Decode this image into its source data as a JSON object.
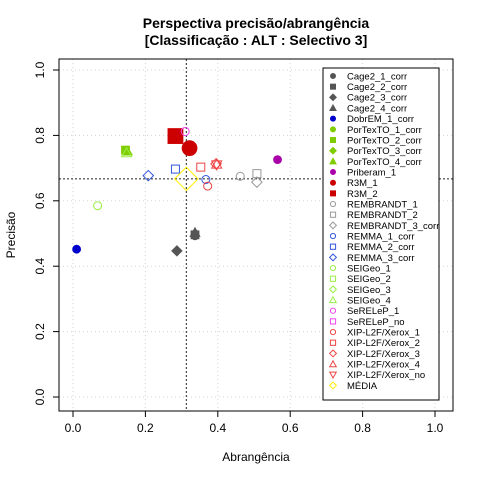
{
  "chart_data": {
    "type": "scatter",
    "title": "Perspectiva precisão/abrangência",
    "subtitle": "[Classificação : ALT : Selectivo 3]",
    "xlabel": "Abrangência",
    "ylabel": "Precisão",
    "xlim": [
      0,
      1
    ],
    "ylim": [
      0,
      1
    ],
    "xticks": [
      "0.0",
      "0.2",
      "0.4",
      "0.6",
      "0.8",
      "1.0"
    ],
    "yticks": [
      "0.0",
      "0.2",
      "0.4",
      "0.6",
      "0.8",
      "1.0"
    ],
    "grid": true,
    "legend_position": "right",
    "reference_lines": {
      "x": 0.313,
      "y": 0.667
    },
    "series": [
      {
        "name": "Cage2_1_corr",
        "marker": "circle-filled",
        "color": "#555555",
        "size": 1,
        "points": [
          [
            0.337,
            0.493
          ]
        ]
      },
      {
        "name": "Cage2_2_corr",
        "marker": "square-filled",
        "color": "#555555",
        "size": 1,
        "points": [
          [
            0.337,
            0.496
          ]
        ]
      },
      {
        "name": "Cage2_3_corr",
        "marker": "diamond-filled",
        "color": "#555555",
        "size": 1,
        "points": [
          [
            0.287,
            0.447
          ]
        ]
      },
      {
        "name": "Cage2_4_corr",
        "marker": "triangle-filled",
        "color": "#555555",
        "size": 1,
        "points": [
          [
            0.337,
            0.503
          ]
        ]
      },
      {
        "name": "DobrEM_1_corr",
        "marker": "circle-filled",
        "color": "#0000cc",
        "size": 1,
        "points": [
          [
            0.01,
            0.452
          ]
        ]
      },
      {
        "name": "PorTexTO_1_corr",
        "marker": "circle-filled",
        "color": "#7fcc00",
        "size": 1,
        "points": []
      },
      {
        "name": "PorTexTO_2_corr",
        "marker": "square-filled",
        "color": "#7fcc00",
        "size": 1,
        "points": [
          [
            0.145,
            0.755
          ]
        ]
      },
      {
        "name": "PorTexTO_3_corr",
        "marker": "diamond-filled",
        "color": "#7fcc00",
        "size": 1,
        "points": []
      },
      {
        "name": "PorTexTO_4_corr",
        "marker": "triangle-filled",
        "color": "#7fcc00",
        "size": 1,
        "points": [
          [
            0.15,
            0.752
          ]
        ]
      },
      {
        "name": "Priberam_1",
        "marker": "circle-filled",
        "color": "#aa00aa",
        "size": 1,
        "points": [
          [
            0.565,
            0.726
          ]
        ]
      },
      {
        "name": "R3M_1",
        "marker": "circle-filled",
        "color": "#cc0000",
        "size": 1,
        "points": [
          [
            0.322,
            0.761
          ]
        ]
      },
      {
        "name": "R3M_2",
        "marker": "square-filled",
        "color": "#cc0000",
        "size": 1,
        "points": [
          [
            0.283,
            0.798
          ]
        ]
      },
      {
        "name": "REMBRANDT_1",
        "marker": "circle-open",
        "color": "#999999",
        "size": 1,
        "points": [
          [
            0.462,
            0.675
          ]
        ]
      },
      {
        "name": "REMBRANDT_2",
        "marker": "square-open",
        "color": "#999999",
        "size": 1,
        "points": [
          [
            0.508,
            0.683
          ]
        ]
      },
      {
        "name": "REMBRANDT_3_corr",
        "marker": "diamond-open",
        "color": "#999999",
        "size": 1,
        "points": [
          [
            0.508,
            0.657
          ]
        ]
      },
      {
        "name": "REMMA_1_corr",
        "marker": "circle-open",
        "color": "#3355dd",
        "size": 1,
        "points": [
          [
            0.367,
            0.665
          ]
        ]
      },
      {
        "name": "REMMA_2_corr",
        "marker": "square-open",
        "color": "#3355dd",
        "size": 1,
        "points": [
          [
            0.283,
            0.697
          ]
        ]
      },
      {
        "name": "REMMA_3_corr",
        "marker": "diamond-open",
        "color": "#3355dd",
        "size": 1,
        "points": [
          [
            0.208,
            0.677
          ]
        ]
      },
      {
        "name": "SEIGeo_1",
        "marker": "circle-open",
        "color": "#99ee44",
        "size": 1,
        "points": [
          [
            0.068,
            0.585
          ]
        ]
      },
      {
        "name": "SEIGeo_2",
        "marker": "square-open",
        "color": "#99ee44",
        "size": 1,
        "points": []
      },
      {
        "name": "SEIGeo_3",
        "marker": "diamond-open",
        "color": "#99ee44",
        "size": 1,
        "points": []
      },
      {
        "name": "SEIGeo_4",
        "marker": "triangle-open",
        "color": "#99ee44",
        "size": 1,
        "points": [
          [
            0.148,
            0.747
          ]
        ]
      },
      {
        "name": "SeRELeP_1",
        "marker": "circle-open",
        "color": "#ee44ee",
        "size": 1,
        "points": [
          [
            0.31,
            0.812
          ]
        ]
      },
      {
        "name": "SeRELeP_no",
        "marker": "square-open",
        "color": "#ee44ee",
        "size": 1,
        "points": []
      },
      {
        "name": "XIP-L2F/Xerox_1",
        "marker": "circle-open",
        "color": "#ee4444",
        "size": 1,
        "points": [
          [
            0.372,
            0.645
          ]
        ]
      },
      {
        "name": "XIP-L2F/Xerox_2",
        "marker": "square-open",
        "color": "#ee4444",
        "size": 1,
        "points": [
          [
            0.353,
            0.703
          ]
        ]
      },
      {
        "name": "XIP-L2F/Xerox_3",
        "marker": "diamond-open",
        "color": "#ee4444",
        "size": 1,
        "points": [
          [
            0.395,
            0.713
          ]
        ]
      },
      {
        "name": "XIP-L2F/Xerox_4",
        "marker": "triangle-open",
        "color": "#ee4444",
        "size": 1,
        "points": [
          [
            0.397,
            0.712
          ]
        ]
      },
      {
        "name": "XIP-L2F/Xerox_no",
        "marker": "triangle-down-open",
        "color": "#ee4444",
        "size": 1,
        "points": [
          [
            0.397,
            0.71
          ]
        ]
      },
      {
        "name": "MÉDIA",
        "marker": "diamond-open",
        "color": "#ffee00",
        "size": 2,
        "points": [
          [
            0.313,
            0.667
          ]
        ]
      }
    ]
  }
}
